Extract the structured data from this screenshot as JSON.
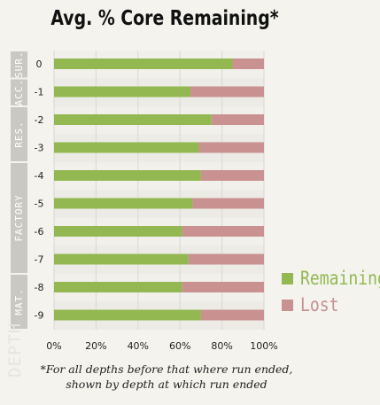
{
  "chart_data": {
    "type": "bar",
    "stacked": true,
    "orientation": "horizontal",
    "title": "Avg. % Core Remaining*",
    "ylabel": "DEPTH",
    "categories": [
      "0",
      "-1",
      "-2",
      "-3",
      "-4",
      "-5",
      "-6",
      "-7",
      "-8",
      "-9"
    ],
    "series": [
      {
        "name": "Remaining",
        "color": "#93b851",
        "values": [
          85,
          65,
          75,
          69,
          70,
          66,
          61,
          64,
          61,
          70
        ]
      },
      {
        "name": "Lost",
        "color": "#c99190",
        "values": [
          15,
          35,
          25,
          31,
          30,
          34,
          39,
          36,
          39,
          30
        ]
      }
    ],
    "xlim": [
      0,
      100
    ],
    "xticks": [
      "0%",
      "20%",
      "40%",
      "60%",
      "80%",
      "100%"
    ],
    "grid": true,
    "legend_position": "right",
    "depth_sections": [
      {
        "label": "SUR.",
        "categories": [
          "0"
        ]
      },
      {
        "label": "ACC.",
        "categories": [
          "-1"
        ]
      },
      {
        "label": "RES.",
        "categories": [
          "-2",
          "-3"
        ]
      },
      {
        "label": "FACTORY",
        "categories": [
          "-4",
          "-5",
          "-6",
          "-7"
        ]
      },
      {
        "label": "MAT.",
        "categories": [
          "-8",
          "-9"
        ]
      }
    ],
    "footnote": [
      "*For all depths before that where run ended,",
      "shown by depth at which run ended"
    ]
  }
}
